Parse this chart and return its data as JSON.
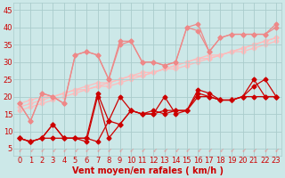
{
  "bg_color": "#cce8e8",
  "grid_color": "#aacccc",
  "xlabel": "Vent moyen/en rafales ( km/h )",
  "xlabel_color": "#cc0000",
  "xlabel_fontsize": 7,
  "tick_color": "#cc0000",
  "tick_fontsize": 6,
  "xlim": [
    -0.5,
    23.5
  ],
  "ylim": [
    3,
    47
  ],
  "yticks": [
    5,
    10,
    15,
    20,
    25,
    30,
    35,
    40,
    45
  ],
  "xticks": [
    0,
    1,
    2,
    3,
    4,
    5,
    6,
    7,
    8,
    9,
    10,
    11,
    12,
    13,
    14,
    15,
    16,
    17,
    18,
    19,
    20,
    21,
    22,
    23
  ],
  "lines_light_straight": [
    [
      18,
      19,
      20,
      20,
      21,
      22,
      23,
      24,
      24,
      25,
      26,
      27,
      27,
      28,
      29,
      30,
      31,
      32,
      32,
      33,
      34,
      35,
      36,
      37
    ],
    [
      17,
      18,
      19,
      20,
      21,
      22,
      22,
      23,
      24,
      25,
      26,
      26,
      27,
      28,
      29,
      30,
      31,
      31,
      32,
      33,
      34,
      35,
      36,
      37
    ],
    [
      16,
      17,
      18,
      19,
      20,
      21,
      22,
      23,
      23,
      24,
      25,
      26,
      27,
      28,
      28,
      29,
      30,
      31,
      32,
      33,
      33,
      34,
      35,
      36
    ]
  ],
  "lines_medium_zigzag": [
    [
      18,
      13,
      21,
      20,
      18,
      32,
      33,
      32,
      25,
      36,
      36,
      30,
      30,
      29,
      30,
      40,
      39,
      33,
      37,
      38,
      38,
      38,
      38,
      40
    ],
    [
      18,
      13,
      21,
      20,
      18,
      32,
      33,
      32,
      25,
      35,
      36,
      30,
      30,
      29,
      30,
      40,
      41,
      33,
      37,
      38,
      38,
      38,
      38,
      41
    ]
  ],
  "lines_dark_zigzag": [
    [
      8,
      7,
      8,
      12,
      8,
      8,
      8,
      21,
      13,
      20,
      16,
      15,
      15,
      16,
      16,
      16,
      22,
      21,
      19,
      19,
      20,
      25,
      20,
      20
    ],
    [
      8,
      7,
      8,
      8,
      8,
      8,
      7,
      20,
      8,
      12,
      16,
      15,
      15,
      20,
      15,
      16,
      21,
      20,
      19,
      19,
      20,
      23,
      25,
      20
    ],
    [
      8,
      7,
      8,
      12,
      8,
      8,
      8,
      7,
      13,
      12,
      16,
      15,
      16,
      15,
      16,
      16,
      20,
      20,
      19,
      19,
      20,
      20,
      20,
      20
    ]
  ],
  "light_color": "#ffbbbb",
  "medium_color": "#ee8888",
  "dark_color": "#cc0000",
  "markersize": 2.5,
  "linewidth": 0.9
}
